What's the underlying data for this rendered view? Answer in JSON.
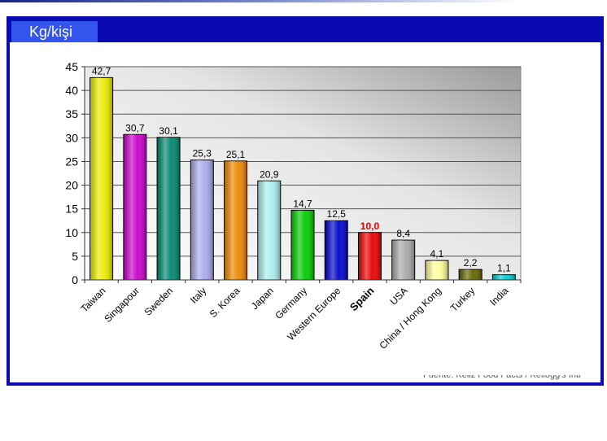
{
  "header": {
    "title": "Kg/kişi"
  },
  "footnote": "Fuente: Kellz Food Facts / Kellogg's Intl",
  "chart_data": {
    "type": "bar",
    "categories": [
      "Taiwan",
      "Singapour",
      "Sweden",
      "Italy",
      "S. Korea",
      "Japan",
      "Germany",
      "Western Europe",
      "Spain",
      "USA",
      "China / Hong Kong",
      "Turkey",
      "India"
    ],
    "values": [
      42.7,
      30.7,
      30.1,
      25.3,
      25.1,
      20.9,
      14.7,
      12.5,
      10.0,
      8.4,
      4.1,
      2.2,
      1.1
    ],
    "value_labels": [
      "42,7",
      "30,7",
      "30,1",
      "25,3",
      "25,1",
      "20,9",
      "14,7",
      "12,5",
      "10,0",
      "8,4",
      "4,1",
      "2,2",
      "1,1"
    ],
    "colors": [
      "#ecec00",
      "#cc00cc",
      "#008870",
      "#aaaaee",
      "#ee8800",
      "#aaeeee",
      "#00cc00",
      "#0000cc",
      "#ee0000",
      "#aaaaaa",
      "#ffff99",
      "#666600",
      "#00cccc"
    ],
    "highlight": {
      "category": "Spain",
      "label_color": "#dd0000"
    },
    "ylim": [
      0,
      45
    ],
    "yticks": [
      0,
      5,
      10,
      15,
      20,
      25,
      30,
      35,
      40,
      45
    ],
    "grid": true,
    "xlabel": "",
    "ylabel": ""
  }
}
